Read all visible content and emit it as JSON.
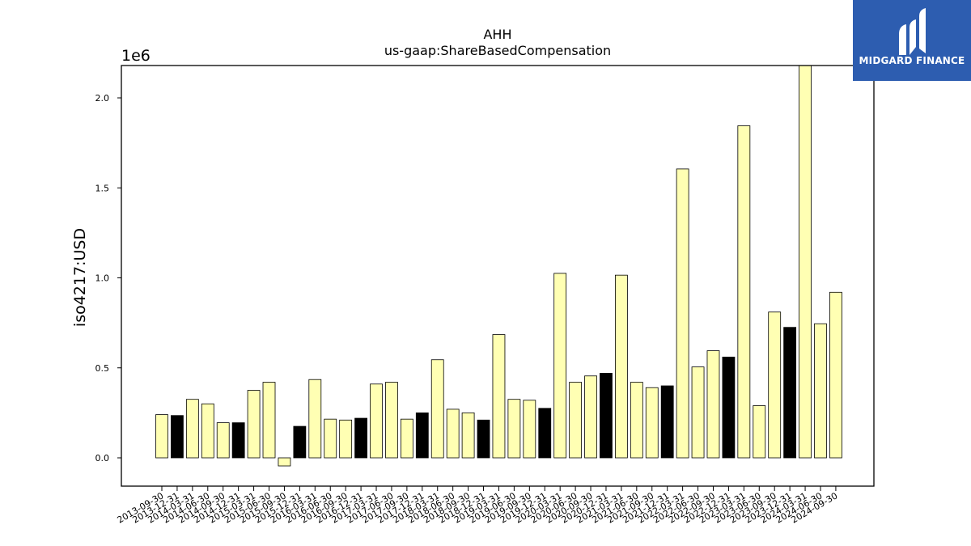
{
  "chart_data": {
    "type": "bar",
    "title": "AHH",
    "subtitle": "us-gaap:ShareBasedCompensation",
    "ylabel": "iso4217:USD",
    "xlabel": "",
    "y_scale_label": "1e6",
    "y_tick_values": [
      0,
      500000,
      1000000,
      1500000,
      2000000
    ],
    "y_tick_labels": [
      "0.0",
      "0.5",
      "1.0",
      "1.5",
      "2.0"
    ],
    "ylim": [
      -170000,
      2180000
    ],
    "grid": false,
    "categories": [
      "2013-09-30",
      "2013-12-31",
      "2014-03-31",
      "2014-06-30",
      "2014-09-30",
      "2014-12-31",
      "2015-03-31",
      "2015-06-30",
      "2015-09-30",
      "2015-12-31",
      "2016-03-31",
      "2016-06-30",
      "2016-09-30",
      "2016-12-31",
      "2017-03-31",
      "2017-06-30",
      "2017-09-30",
      "2017-12-31",
      "2018-03-31",
      "2018-06-30",
      "2018-09-30",
      "2018-12-31",
      "2019-03-31",
      "2019-06-30",
      "2019-09-30",
      "2019-12-31",
      "2020-03-31",
      "2020-06-30",
      "2020-09-30",
      "2020-12-31",
      "2021-03-31",
      "2021-06-30",
      "2021-09-30",
      "2021-12-31",
      "2022-03-31",
      "2022-06-30",
      "2022-09-30",
      "2022-12-31",
      "2023-03-31",
      "2023-06-30",
      "2023-09-30",
      "2023-12-31",
      "2024-03-31",
      "2024-06-30",
      "2024-09-30"
    ],
    "values": [
      240000,
      235000,
      325000,
      300000,
      195000,
      195000,
      375000,
      420000,
      -45000,
      175000,
      435000,
      215000,
      210000,
      220000,
      410000,
      420000,
      215000,
      250000,
      545000,
      270000,
      250000,
      210000,
      685000,
      325000,
      320000,
      275000,
      1025000,
      420000,
      455000,
      470000,
      1015000,
      420000,
      390000,
      400000,
      1605000,
      505000,
      595000,
      560000,
      1845000,
      290000,
      810000,
      725000,
      2180000,
      745000,
      920000
    ],
    "bar_colors": [
      "#ffffb3",
      "#000000",
      "#ffffb3",
      "#ffffb3",
      "#ffffb3",
      "#000000",
      "#ffffb3",
      "#ffffb3",
      "#ffffb3",
      "#000000",
      "#ffffb3",
      "#ffffb3",
      "#ffffb3",
      "#000000",
      "#ffffb3",
      "#ffffb3",
      "#ffffb3",
      "#000000",
      "#ffffb3",
      "#ffffb3",
      "#ffffb3",
      "#000000",
      "#ffffb3",
      "#ffffb3",
      "#ffffb3",
      "#000000",
      "#ffffb3",
      "#ffffb3",
      "#ffffb3",
      "#000000",
      "#ffffb3",
      "#ffffb3",
      "#ffffb3",
      "#000000",
      "#ffffb3",
      "#ffffb3",
      "#ffffb3",
      "#000000",
      "#ffffb3",
      "#ffffb3",
      "#ffffb3",
      "#000000",
      "#ffffb3",
      "#ffffb3",
      "#ffffb3"
    ]
  },
  "logo": {
    "text": "MIDGARD FINANCE",
    "icon": "midgard-m-logo-icon",
    "background": "#2d5db0"
  }
}
